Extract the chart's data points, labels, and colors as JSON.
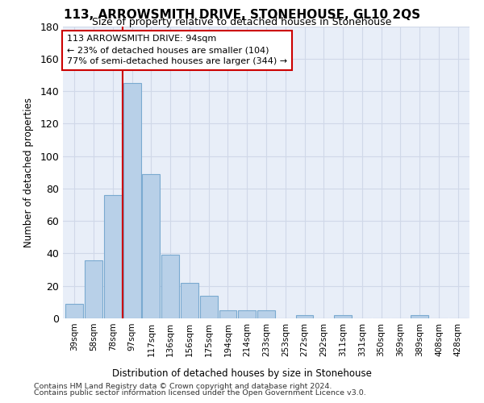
{
  "title1": "113, ARROWSMITH DRIVE, STONEHOUSE, GL10 2QS",
  "title2": "Size of property relative to detached houses in Stonehouse",
  "xlabel": "Distribution of detached houses by size in Stonehouse",
  "ylabel": "Number of detached properties",
  "bar_color": "#b8d0e8",
  "bar_edge_color": "#7aaad0",
  "categories": [
    "39sqm",
    "58sqm",
    "78sqm",
    "97sqm",
    "117sqm",
    "136sqm",
    "156sqm",
    "175sqm",
    "194sqm",
    "214sqm",
    "233sqm",
    "253sqm",
    "272sqm",
    "292sqm",
    "311sqm",
    "331sqm",
    "350sqm",
    "369sqm",
    "389sqm",
    "408sqm",
    "428sqm"
  ],
  "values": [
    9,
    36,
    76,
    145,
    89,
    39,
    22,
    14,
    5,
    5,
    5,
    0,
    2,
    0,
    2,
    0,
    0,
    0,
    2,
    0,
    0
  ],
  "vline_x_index": 2.5,
  "vline_color": "#cc0000",
  "ann_line1": "113 ARROWSMITH DRIVE: 94sqm",
  "ann_line2": "← 23% of detached houses are smaller (104)",
  "ann_line3": "77% of semi-detached houses are larger (344) →",
  "annotation_box_color": "#ffffff",
  "annotation_box_edge": "#cc0000",
  "ylim": [
    0,
    180
  ],
  "yticks": [
    0,
    20,
    40,
    60,
    80,
    100,
    120,
    140,
    160,
    180
  ],
  "grid_color": "#d0d8e8",
  "background_color": "#e8eef8",
  "footnote1": "Contains HM Land Registry data © Crown copyright and database right 2024.",
  "footnote2": "Contains public sector information licensed under the Open Government Licence v3.0."
}
